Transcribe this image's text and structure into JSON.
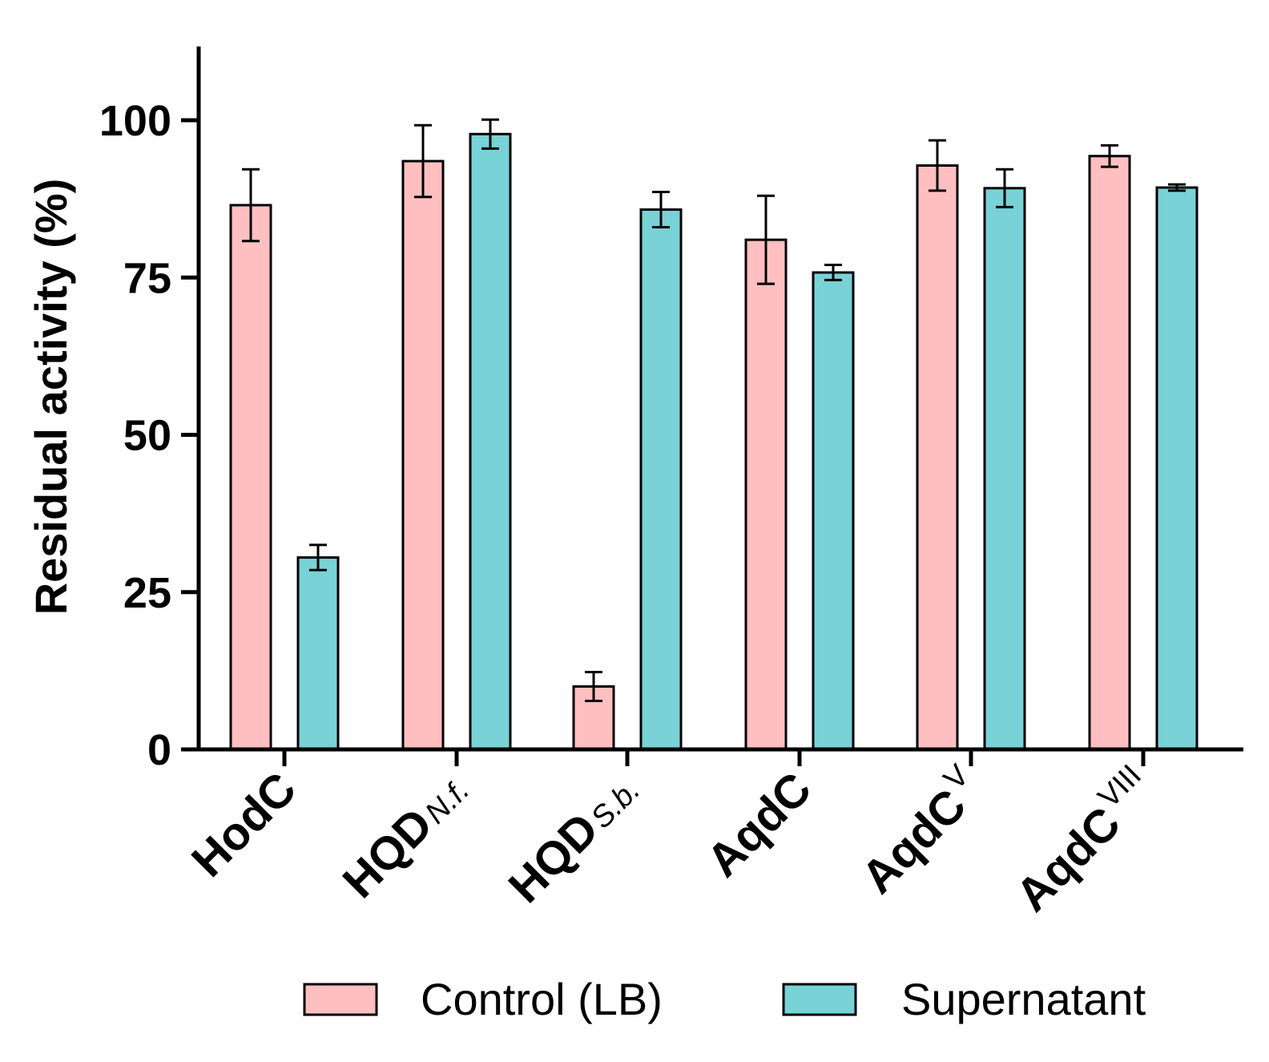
{
  "chart_data": {
    "type": "bar",
    "title": "",
    "xlabel": "",
    "ylabel": "Residual activity (%)",
    "ylim": [
      0,
      110
    ],
    "yticks": [
      0,
      25,
      50,
      75,
      100
    ],
    "ytick_labels": [
      "0",
      "25",
      "50",
      "75",
      "100"
    ],
    "categories": [
      {
        "base": "HodC",
        "sub": "",
        "sup": ""
      },
      {
        "base": "HQD",
        "sub": "N.f.",
        "sup": ""
      },
      {
        "base": "HQD",
        "sub": "S.b.",
        "sup": ""
      },
      {
        "base": "AqdC",
        "sub": "",
        "sup": ""
      },
      {
        "base": "AqdC",
        "sub": "",
        "sup": "V"
      },
      {
        "base": "AqdC",
        "sub": "",
        "sup": "VIII"
      }
    ],
    "series": [
      {
        "name": "Control (LB)",
        "color": "#ffbfc0",
        "values": [
          86.5,
          93.5,
          10,
          81,
          92.8,
          94.3
        ],
        "errors": [
          5.7,
          5.7,
          2.3,
          7,
          4,
          1.7
        ]
      },
      {
        "name": "Supernatant",
        "color": "#79d2d6",
        "values": [
          30.5,
          97.8,
          85.8,
          75.8,
          89.2,
          89.3
        ],
        "errors": [
          2,
          2.3,
          2.8,
          1.2,
          3,
          0.5
        ]
      }
    ],
    "legend": {
      "position": "bottom",
      "entries": [
        "Control (LB)",
        "Supernatant"
      ]
    }
  }
}
